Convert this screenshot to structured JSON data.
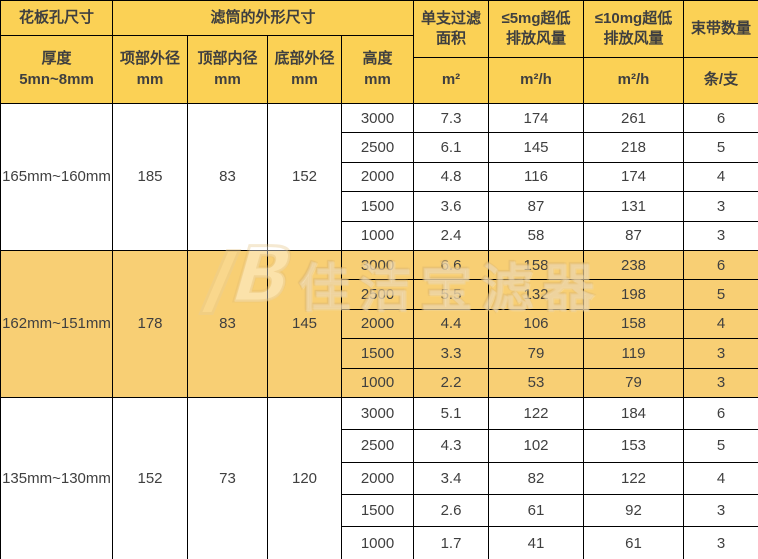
{
  "header": {
    "hole_size": "花板孔尺寸",
    "outer_dims": "滤筒的外形尺寸",
    "thickness_line1": "厚度",
    "thickness_line2": "5mn~8mm",
    "top_od_line1": "项部外径",
    "top_id_line1": "顶部内径",
    "bottom_od_line1": "底部外径",
    "height_line1": "高度",
    "mm_unit": "mm",
    "filter_area_line1": "单支过滤",
    "filter_area_line2": "面积",
    "le5_line1": "≤5mg超低",
    "le5_line2": "排放风量",
    "le10_line1": "≤10mg超低",
    "le10_line2": "排放风量",
    "straps": "束带数量",
    "unit_area": "m²",
    "unit_flow": "m²/h",
    "unit_straps": "条/支"
  },
  "sections": [
    {
      "hole": "165mm~160mm",
      "top_od": "185",
      "top_id": "83",
      "bottom_od": "152",
      "rows": [
        {
          "h": "3000",
          "area": "7.3",
          "q5": "174",
          "q10": "261",
          "straps": "6"
        },
        {
          "h": "2500",
          "area": "6.1",
          "q5": "145",
          "q10": "218",
          "straps": "5"
        },
        {
          "h": "2000",
          "area": "4.8",
          "q5": "116",
          "q10": "174",
          "straps": "4"
        },
        {
          "h": "1500",
          "area": "3.6",
          "q5": "87",
          "q10": "131",
          "straps": "3"
        },
        {
          "h": "1000",
          "area": "2.4",
          "q5": "58",
          "q10": "87",
          "straps": "3"
        }
      ]
    },
    {
      "hole": "162mm~151mm",
      "top_od": "178",
      "top_id": "83",
      "bottom_od": "145",
      "rows": [
        {
          "h": "3000",
          "area": "6.6",
          "q5": "158",
          "q10": "238",
          "straps": "6"
        },
        {
          "h": "2500",
          "area": "5.5",
          "q5": "132",
          "q10": "198",
          "straps": "5"
        },
        {
          "h": "2000",
          "area": "4.4",
          "q5": "106",
          "q10": "158",
          "straps": "4"
        },
        {
          "h": "1500",
          "area": "3.3",
          "q5": "79",
          "q10": "119",
          "straps": "3"
        },
        {
          "h": "1000",
          "area": "2.2",
          "q5": "53",
          "q10": "79",
          "straps": "3"
        }
      ]
    },
    {
      "hole": "135mm~130mm",
      "top_od": "152",
      "top_id": "73",
      "bottom_od": "120",
      "rows": [
        {
          "h": "3000",
          "area": "5.1",
          "q5": "122",
          "q10": "184",
          "straps": "6"
        },
        {
          "h": "2500",
          "area": "4.3",
          "q5": "102",
          "q10": "153",
          "straps": "5"
        },
        {
          "h": "2000",
          "area": "3.4",
          "q5": "82",
          "q10": "122",
          "straps": "4"
        },
        {
          "h": "1500",
          "area": "2.6",
          "q5": "61",
          "q10": "92",
          "straps": "3"
        },
        {
          "h": "1000",
          "area": "1.7",
          "q5": "41",
          "q10": "61",
          "straps": "3"
        }
      ]
    }
  ],
  "watermark": {
    "logo": "B",
    "text": "佳洁宝滤器"
  },
  "colors": {
    "header_bg": "#FBD155",
    "band_bg": "#F8CF74",
    "border_color": "#000000"
  }
}
